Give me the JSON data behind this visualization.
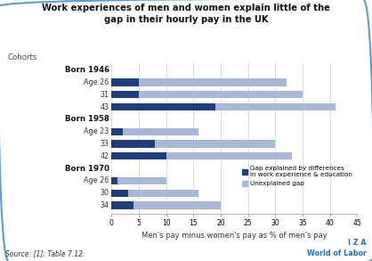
{
  "title": "Work experiences of men and women explain little of the\ngap in their hourly pay in the UK",
  "xlabel": "Men's pay minus women's pay as % of men's pay",
  "cohorts_label": "Cohorts",
  "source": "Source: [1]; Table 7.12.",
  "iza_line1": "I Z A",
  "iza_line2": "World of Labor",
  "background_color": "#ffffff",
  "border_color": "#5b9bd5",
  "bar_dark": "#1f3d7a",
  "bar_light": "#aab8d8",
  "legend_dark_label": "Gap explained by differences\nin work experience & education",
  "legend_light_label": "Unexplained gap",
  "xlim": [
    0,
    45
  ],
  "xticks": [
    0,
    5,
    10,
    15,
    20,
    25,
    30,
    35,
    40,
    45
  ],
  "rows": [
    {
      "label": "Born 1946",
      "is_header": true,
      "indent": false,
      "dark": 0,
      "total": 0
    },
    {
      "label": "Age 26",
      "is_header": false,
      "indent": true,
      "dark": 5,
      "total": 32
    },
    {
      "label": "31",
      "is_header": false,
      "indent": true,
      "dark": 5,
      "total": 35
    },
    {
      "label": "43",
      "is_header": false,
      "indent": true,
      "dark": 19,
      "total": 41
    },
    {
      "label": "Born 1958",
      "is_header": true,
      "indent": false,
      "dark": 0,
      "total": 0
    },
    {
      "label": "Age 23",
      "is_header": false,
      "indent": true,
      "dark": 2,
      "total": 16
    },
    {
      "label": "33",
      "is_header": false,
      "indent": true,
      "dark": 8,
      "total": 30
    },
    {
      "label": "42",
      "is_header": false,
      "indent": true,
      "dark": 10,
      "total": 33
    },
    {
      "label": "Born 1970",
      "is_header": true,
      "indent": false,
      "dark": 0,
      "total": 0
    },
    {
      "label": "Age 26",
      "is_header": false,
      "indent": true,
      "dark": 1,
      "total": 10
    },
    {
      "label": "30",
      "is_header": false,
      "indent": true,
      "dark": 3,
      "total": 16
    },
    {
      "label": "34",
      "is_header": false,
      "indent": true,
      "dark": 4,
      "total": 20
    }
  ]
}
